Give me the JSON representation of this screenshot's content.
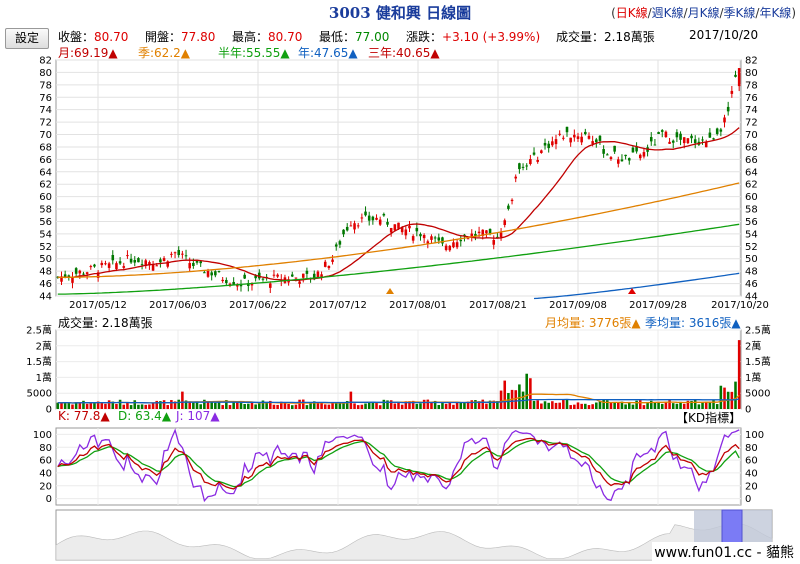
{
  "header": {
    "title": "3003 健和興 日線圖",
    "links": [
      "日K線",
      "週K線",
      "月K線",
      "季K線",
      "年K線"
    ],
    "active_link": 0,
    "open_paren": "(",
    "close_paren": ")",
    "separator": "/"
  },
  "toolbar": {
    "settings_label": "設定"
  },
  "quote": {
    "close_label": "收盤：",
    "close": "80.70",
    "open_label": "開盤：",
    "open": "77.80",
    "high_label": "最高：",
    "high": "80.70",
    "low_label": "最低：",
    "low": "77.00",
    "change_label": "漲跌：",
    "change": "+3.10 (+3.99%)",
    "volume_label": "成交量：",
    "volume": "2.18萬張",
    "date": "2017/10/20"
  },
  "ma_legend": [
    {
      "label": "月:69.19",
      "color": "#c00000"
    },
    {
      "label": "季:62.2",
      "color": "#e08000"
    },
    {
      "label": "半年:55.55",
      "color": "#10a010"
    },
    {
      "label": "年:47.65",
      "color": "#1060c0"
    },
    {
      "label": "三年:40.65",
      "color": "#c00000"
    }
  ],
  "volume_panel": {
    "label": "成交量: 2.18萬張",
    "month_avg": "月均量: 3776張",
    "season_avg": "季均量: 3616張",
    "month_color": "#e08000",
    "season_color": "#1060c0"
  },
  "kd_panel": {
    "k_label": "K: 77.8",
    "d_label": "D: 63.4",
    "j_label": "J: 107",
    "title": "【KD指標】",
    "k_color": "#c00000",
    "d_color": "#10a010",
    "j_color": "#8a2be2"
  },
  "footer": {
    "text": "www.fun01.cc - 貓熊"
  },
  "chart_data": {
    "type": "candlestick",
    "price_axis": {
      "ylim": [
        44,
        82
      ],
      "ticks": [
        44,
        46,
        48,
        50,
        52,
        54,
        56,
        58,
        60,
        62,
        64,
        66,
        68,
        70,
        72,
        74,
        76,
        78,
        80,
        82
      ]
    },
    "x_dates": [
      "2017/05/12",
      "2017/06/03",
      "2017/06/22",
      "2017/07/12",
      "2017/08/01",
      "2017/08/21",
      "2017/09/08",
      "2017/09/28",
      "2017/10/20"
    ],
    "volume_axis": {
      "ticks": [
        "0",
        "5000",
        "1萬",
        "1.5萬",
        "2萬",
        "2.5萬"
      ],
      "tick_values": [
        0,
        5000,
        10000,
        15000,
        20000,
        25000
      ],
      "ylim": [
        0,
        25000
      ]
    },
    "kd_axis": {
      "ticks": [
        0,
        20,
        40,
        60,
        80,
        100
      ],
      "ylim": [
        -10,
        110
      ]
    },
    "last_candle": {
      "open": 77.8,
      "high": 80.7,
      "low": 77.0,
      "close": 80.7,
      "volume": 21800
    },
    "ma_last": {
      "month": 69.19,
      "season": 62.2,
      "half_year": 55.55,
      "year": 47.65,
      "three_year": 40.65
    },
    "kd_last": {
      "K": 77.8,
      "D": 63.4,
      "J": 107
    }
  }
}
